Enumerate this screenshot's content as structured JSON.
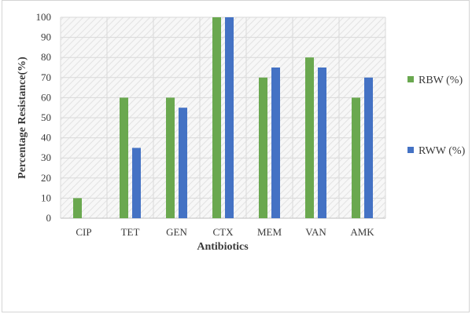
{
  "chart_data": {
    "type": "bar",
    "categories": [
      "CIP",
      "TET",
      "GEN",
      "CTX",
      "MEM",
      "VAN",
      "AMK"
    ],
    "series": [
      {
        "name": "RBW (%)",
        "values": [
          10,
          60,
          60,
          100,
          70,
          80,
          60
        ],
        "color": "#6aa84f"
      },
      {
        "name": "RWW (%)",
        "values": [
          0,
          35,
          55,
          100,
          75,
          75,
          70
        ],
        "color": "#4472c4"
      }
    ],
    "xlabel": "Antibiotics",
    "ylabel": "Percentage Resistance(%)",
    "ylim": [
      0,
      100
    ],
    "yticks": [
      0,
      10,
      20,
      30,
      40,
      50,
      60,
      70,
      80,
      90,
      100
    ],
    "grid": true,
    "legend_position": "right"
  }
}
